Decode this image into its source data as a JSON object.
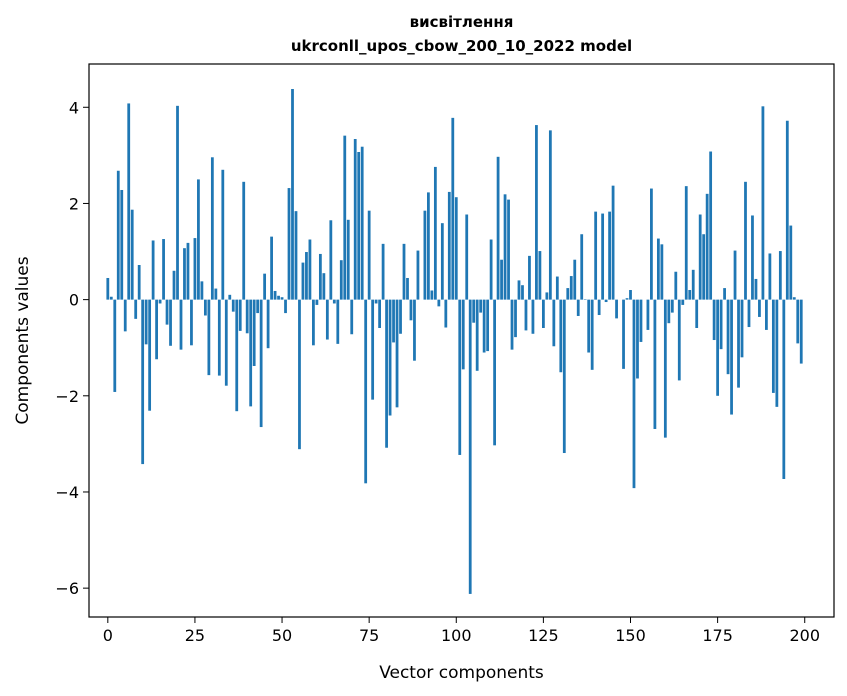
{
  "chart_data": {
    "type": "bar",
    "title": [
      "висвітлення",
      "ukrconll_upos_cbow_200_10_2022 model"
    ],
    "xlabel": "Vector components",
    "ylabel": "Components values",
    "xlim": [
      -5.4,
      208.4
    ],
    "ylim": [
      -6.6,
      4.9
    ],
    "x_ticks": [
      0,
      25,
      50,
      75,
      100,
      125,
      150,
      175,
      200
    ],
    "x_tick_labels": [
      "0",
      "25",
      "50",
      "75",
      "100",
      "125",
      "150",
      "175",
      "200"
    ],
    "y_ticks": [
      -6,
      -4,
      -2,
      0,
      2,
      4
    ],
    "y_tick_labels": [
      "−6",
      "−4",
      "−2",
      "0",
      "2",
      "4"
    ],
    "bar_color": "#1f77b4",
    "grid": false,
    "values": [
      0.45,
      0.06,
      -1.92,
      2.68,
      2.28,
      -0.66,
      4.08,
      1.87,
      -0.4,
      0.72,
      -3.42,
      -0.93,
      -2.31,
      1.23,
      -1.24,
      -0.08,
      1.26,
      -0.52,
      -0.96,
      0.6,
      4.03,
      -1.04,
      1.07,
      1.18,
      -0.95,
      1.28,
      2.5,
      0.38,
      -0.33,
      -1.57,
      2.96,
      0.23,
      -1.58,
      2.7,
      -1.79,
      0.1,
      -0.25,
      -2.32,
      -0.65,
      2.45,
      -0.7,
      -2.22,
      -1.38,
      -0.28,
      -2.65,
      0.54,
      -1.01,
      1.31,
      0.18,
      0.08,
      0.05,
      -0.28,
      2.32,
      4.38,
      1.84,
      -3.11,
      0.77,
      0.99,
      1.25,
      -0.95,
      -0.11,
      0.95,
      0.55,
      -0.83,
      1.65,
      -0.08,
      -0.92,
      0.82,
      3.41,
      1.66,
      -0.72,
      3.34,
      3.07,
      3.18,
      -3.82,
      1.85,
      -2.08,
      -0.08,
      -0.59,
      1.16,
      -3.08,
      -2.41,
      -0.89,
      -2.24,
      -0.71,
      1.16,
      0.45,
      -0.43,
      -1.27,
      1.02,
      0.0,
      1.85,
      2.23,
      0.19,
      2.76,
      -0.14,
      1.59,
      -0.58,
      2.24,
      3.78,
      2.13,
      -3.23,
      -1.45,
      1.77,
      -6.12,
      -0.48,
      -1.48,
      -0.27,
      -1.1,
      -1.07,
      1.25,
      -3.03,
      2.97,
      0.83,
      2.19,
      2.08,
      -1.04,
      -0.78,
      0.4,
      0.3,
      -0.64,
      0.91,
      -0.71,
      3.63,
      1.01,
      -0.59,
      0.15,
      3.52,
      -0.97,
      0.48,
      -1.51,
      -3.19,
      0.24,
      0.49,
      0.83,
      -0.34,
      1.36,
      0.01,
      -1.1,
      -1.46,
      1.83,
      -0.32,
      1.79,
      -0.05,
      1.83,
      2.37,
      -0.39,
      0.0,
      -1.44,
      0.03,
      0.2,
      -3.92,
      -1.64,
      -0.88,
      0.0,
      -0.63,
      2.31,
      -2.69,
      1.27,
      1.15,
      -2.87,
      -0.49,
      -0.27,
      0.58,
      -1.68,
      -0.11,
      2.36,
      0.2,
      0.62,
      -0.59,
      1.77,
      1.36,
      2.2,
      3.08,
      -0.84,
      -2.0,
      -1.03,
      0.24,
      -1.55,
      -2.39,
      1.02,
      -1.83,
      -1.2,
      2.45,
      -0.57,
      1.75,
      0.43,
      -0.36,
      4.02,
      -0.63,
      0.96,
      -1.94,
      -2.23,
      1.01,
      -3.73,
      3.72,
      1.54,
      0.05,
      -0.91,
      -1.33
    ]
  }
}
